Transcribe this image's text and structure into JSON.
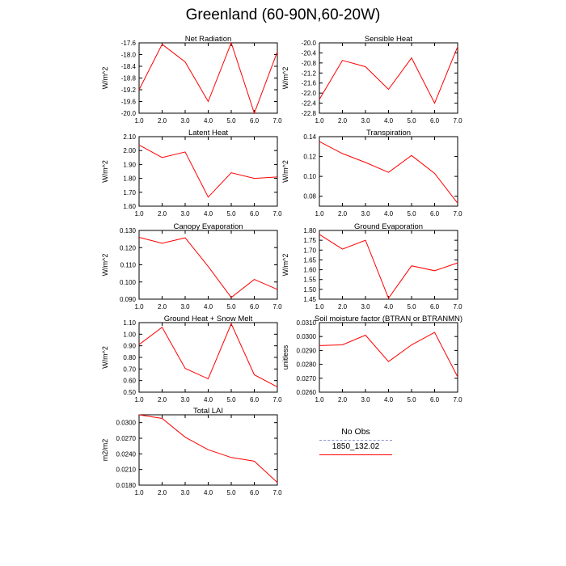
{
  "title": "Greenland (60-90N,60-20W)",
  "legend": {
    "title": "No Obs",
    "entries": [
      {
        "label": "",
        "color": "#8f93d6",
        "style": "dashed"
      },
      {
        "label": "1850_132.02",
        "color": "#ff0000",
        "style": "solid"
      }
    ]
  },
  "line_color": "#ff0000",
  "chart_data": [
    {
      "type": "line",
      "title": "Net Radiation",
      "ylabel": "W/m^2",
      "x": [
        1,
        2,
        3,
        4,
        5,
        6,
        7
      ],
      "y": [
        -19.2,
        -17.65,
        -18.25,
        -19.6,
        -17.6,
        -20.0,
        -17.9
      ],
      "xlim": [
        1,
        7
      ],
      "ylim": [
        -20.0,
        -17.6
      ],
      "xticks": [
        "1.0",
        "2.0",
        "3.0",
        "4.0",
        "5.0",
        "6.0",
        "7.0"
      ],
      "yticks": [
        "-17.6",
        "-18.0",
        "-18.4",
        "-18.8",
        "-19.2",
        "-19.6",
        "-20.0"
      ]
    },
    {
      "type": "line",
      "title": "Sensible Heat",
      "ylabel": "W/m^2",
      "x": [
        1,
        2,
        3,
        4,
        5,
        6,
        7
      ],
      "y": [
        -22.25,
        -20.7,
        -20.95,
        -21.85,
        -20.6,
        -22.4,
        -20.15
      ],
      "xlim": [
        1,
        7
      ],
      "ylim": [
        -22.8,
        -20.0
      ],
      "xticks": [
        "1.0",
        "2.0",
        "3.0",
        "4.0",
        "5.0",
        "6.0",
        "7.0"
      ],
      "yticks": [
        "-20.0",
        "-20.4",
        "-20.8",
        "-21.2",
        "-21.6",
        "-22.0",
        "-22.4",
        "-22.8"
      ]
    },
    {
      "type": "line",
      "title": "Latent Heat",
      "ylabel": "W/m^2",
      "x": [
        1,
        2,
        3,
        4,
        5,
        6,
        7
      ],
      "y": [
        2.04,
        1.95,
        1.99,
        1.665,
        1.84,
        1.8,
        1.81
      ],
      "xlim": [
        1,
        7
      ],
      "ylim": [
        1.6,
        2.1
      ],
      "xticks": [
        "1.0",
        "2.0",
        "3.0",
        "4.0",
        "5.0",
        "6.0",
        "7.0"
      ],
      "yticks": [
        "2.10",
        "2.00",
        "1.90",
        "1.80",
        "1.70",
        "1.60"
      ]
    },
    {
      "type": "line",
      "title": "Transpiration",
      "ylabel": "W/m^2",
      "x": [
        1,
        2,
        3,
        4,
        5,
        6,
        7
      ],
      "y": [
        0.135,
        0.123,
        0.114,
        0.104,
        0.121,
        0.103,
        0.073
      ],
      "xlim": [
        1,
        7
      ],
      "ylim": [
        0.07,
        0.14
      ],
      "xticks": [
        "1.0",
        "2.0",
        "3.0",
        "4.0",
        "5.0",
        "6.0",
        "7.0"
      ],
      "yticks": [
        "0.14",
        "0.12",
        "0.10",
        "0.08"
      ]
    },
    {
      "type": "line",
      "title": "Canopy Evaporation",
      "ylabel": "W/m^2",
      "x": [
        1,
        2,
        3,
        4,
        5,
        6,
        7
      ],
      "y": [
        0.126,
        0.1225,
        0.1257,
        0.109,
        0.091,
        0.1015,
        0.0957
      ],
      "xlim": [
        1,
        7
      ],
      "ylim": [
        0.09,
        0.13
      ],
      "xticks": [
        "1.0",
        "2.0",
        "3.0",
        "4.0",
        "5.0",
        "6.0",
        "7.0"
      ],
      "yticks": [
        "0.130",
        "0.120",
        "0.110",
        "0.100",
        "0.090"
      ]
    },
    {
      "type": "line",
      "title": "Ground Evaporation",
      "ylabel": "W/m^2",
      "x": [
        1,
        2,
        3,
        4,
        5,
        6,
        7
      ],
      "y": [
        1.78,
        1.705,
        1.75,
        1.455,
        1.62,
        1.595,
        1.635
      ],
      "xlim": [
        1,
        7
      ],
      "ylim": [
        1.45,
        1.8
      ],
      "xticks": [
        "1.0",
        "2.0",
        "3.0",
        "4.0",
        "5.0",
        "6.0",
        "7.0"
      ],
      "yticks": [
        "1.80",
        "1.75",
        "1.70",
        "1.65",
        "1.60",
        "1.55",
        "1.50",
        "1.45"
      ]
    },
    {
      "type": "line",
      "title": "Ground Heat + Snow Melt",
      "ylabel": "W/m^2",
      "x": [
        1,
        2,
        3,
        4,
        5,
        6,
        7
      ],
      "y": [
        0.91,
        1.06,
        0.705,
        0.615,
        1.09,
        0.65,
        0.545
      ],
      "xlim": [
        1,
        7
      ],
      "ylim": [
        0.5,
        1.1
      ],
      "xticks": [
        "1.0",
        "2.0",
        "3.0",
        "4.0",
        "5.0",
        "6.0",
        "7.0"
      ],
      "yticks": [
        "1.10",
        "1.00",
        "0.90",
        "0.80",
        "0.70",
        "0.60",
        "0.50"
      ]
    },
    {
      "type": "line",
      "title": "Soil moisture factor (BTRAN or BTRANMN)",
      "ylabel": "unitless",
      "x": [
        1,
        2,
        3,
        4,
        5,
        6,
        7
      ],
      "y": [
        0.02935,
        0.0294,
        0.0301,
        0.0282,
        0.0294,
        0.0303,
        0.0271
      ],
      "xlim": [
        1,
        7
      ],
      "ylim": [
        0.026,
        0.031
      ],
      "xticks": [
        "1.0",
        "2.0",
        "3.0",
        "4.0",
        "5.0",
        "6.0",
        "7.0"
      ],
      "yticks": [
        "0.0310",
        "0.0300",
        "0.0290",
        "0.0280",
        "0.0270",
        "0.0260"
      ]
    },
    {
      "type": "line",
      "title": "Total LAI",
      "ylabel": "m2/m2",
      "x": [
        1,
        2,
        3,
        4,
        5,
        6,
        7
      ],
      "y": [
        0.0315,
        0.0308,
        0.0272,
        0.0248,
        0.0233,
        0.0226,
        0.0185
      ],
      "xlim": [
        1,
        7
      ],
      "ylim": [
        0.018,
        0.0315
      ],
      "xticks": [
        "1.0",
        "2.0",
        "3.0",
        "4.0",
        "5.0",
        "6.0",
        "7.0"
      ],
      "yticks": [
        "0.0300",
        "0.0270",
        "0.0240",
        "0.0210",
        "0.0180"
      ]
    }
  ]
}
